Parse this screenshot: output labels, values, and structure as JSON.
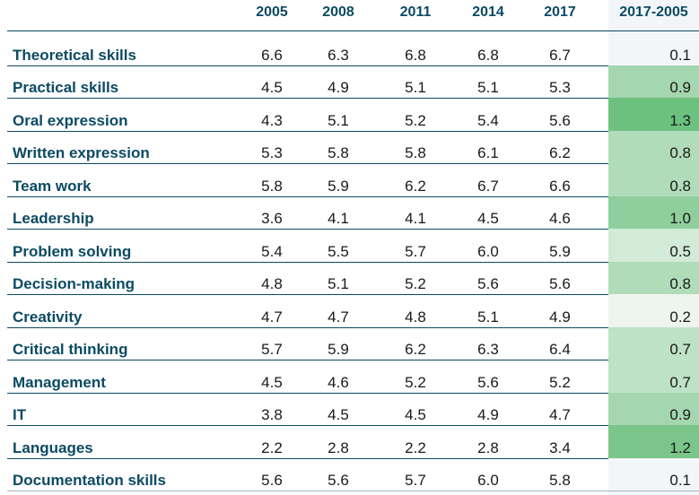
{
  "headers": {
    "y2005": "2005",
    "y2008": "2008",
    "y2011": "2011",
    "y2014": "2014",
    "y2017": "2017",
    "diff": "2017-2005"
  },
  "diff_colors": {
    "0.1": "#f3f6f8",
    "0.2": "#eef5ef",
    "0.5": "#d2ead6",
    "0.7": "#bde2c5",
    "0.8": "#b1dcba",
    "0.9": "#a4d6af",
    "1.0": "#8fce9d",
    "1.2": "#7ac68a",
    "1.3": "#6dc17f"
  },
  "rows": [
    {
      "skill": "Theoretical skills",
      "v2005": "6.6",
      "v2008": "6.3",
      "v2011": "6.8",
      "v2014": "6.8",
      "v2017": "6.7",
      "diff": "0.1"
    },
    {
      "skill": "Practical skills",
      "v2005": "4.5",
      "v2008": "4.9",
      "v2011": "5.1",
      "v2014": "5.1",
      "v2017": "5.3",
      "diff": "0.9"
    },
    {
      "skill": "Oral expression",
      "v2005": "4.3",
      "v2008": "5.1",
      "v2011": "5.2",
      "v2014": "5.4",
      "v2017": "5.6",
      "diff": "1.3"
    },
    {
      "skill": "Written expression",
      "v2005": "5.3",
      "v2008": "5.8",
      "v2011": "5.8",
      "v2014": "6.1",
      "v2017": "6.2",
      "diff": "0.8"
    },
    {
      "skill": "Team work",
      "v2005": "5.8",
      "v2008": "5.9",
      "v2011": "6.2",
      "v2014": "6.7",
      "v2017": "6.6",
      "diff": "0.8"
    },
    {
      "skill": "Leadership",
      "v2005": "3.6",
      "v2008": "4.1",
      "v2011": "4.1",
      "v2014": "4.5",
      "v2017": "4.6",
      "diff": "1.0"
    },
    {
      "skill": "Problem solving",
      "v2005": "5.4",
      "v2008": "5.5",
      "v2011": "5.7",
      "v2014": "6.0",
      "v2017": "5.9",
      "diff": "0.5"
    },
    {
      "skill": "Decision-making",
      "v2005": "4.8",
      "v2008": "5.1",
      "v2011": "5.2",
      "v2014": "5.6",
      "v2017": "5.6",
      "diff": "0.8"
    },
    {
      "skill": "Creativity",
      "v2005": "4.7",
      "v2008": "4.7",
      "v2011": "4.8",
      "v2014": "5.1",
      "v2017": "4.9",
      "diff": "0.2"
    },
    {
      "skill": "Critical thinking",
      "v2005": "5.7",
      "v2008": "5.9",
      "v2011": "6.2",
      "v2014": "6.3",
      "v2017": "6.4",
      "diff": "0.7"
    },
    {
      "skill": "Management",
      "v2005": "4.5",
      "v2008": "4.6",
      "v2011": "5.2",
      "v2014": "5.6",
      "v2017": "5.2",
      "diff": "0.7"
    },
    {
      "skill": "IT",
      "v2005": "3.8",
      "v2008": "4.5",
      "v2011": "4.5",
      "v2014": "4.9",
      "v2017": "4.7",
      "diff": "0.9"
    },
    {
      "skill": "Languages",
      "v2005": "2.2",
      "v2008": "2.8",
      "v2011": "2.2",
      "v2014": "2.8",
      "v2017": "3.4",
      "diff": "1.2"
    },
    {
      "skill": "Documentation skills",
      "v2005": "5.6",
      "v2008": "5.6",
      "v2011": "5.7",
      "v2014": "6.0",
      "v2017": "5.8",
      "diff": "0.1"
    }
  ]
}
